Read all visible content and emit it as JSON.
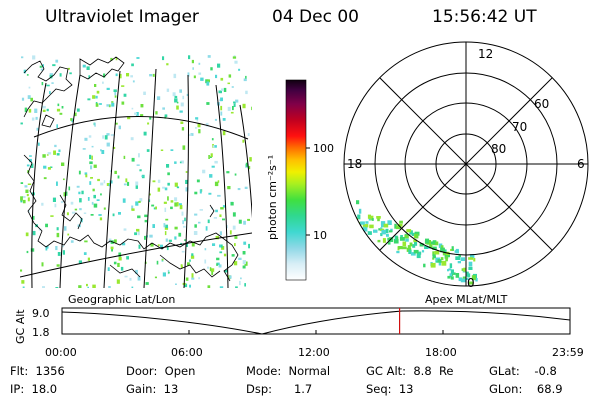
{
  "header": {
    "instrument": "Ultraviolet Imager",
    "date": "04 Dec 00",
    "time": "15:56:42 UT"
  },
  "colorbar": {
    "unit_label": "photon cm⁻²s⁻¹",
    "ticks": [
      "100",
      "10"
    ]
  },
  "polar_plot": {
    "mlt_labels": [
      "12",
      "18",
      "6",
      "0"
    ],
    "lat_labels": [
      "60",
      "70",
      "80"
    ]
  },
  "map_labels": {
    "geographic": "Geographic Lat/Lon",
    "apex": "Apex MLat/MLT"
  },
  "altitude_plot": {
    "ylabel": "GC Alt",
    "yticks": [
      "9.0",
      "1.8"
    ],
    "xticks": [
      "00:00",
      "06:00",
      "12:00",
      "18:00",
      "23:59"
    ],
    "current_time_hours": 15.95
  },
  "status": {
    "flt": "Flt:  1356",
    "ip": "IP:  18.0",
    "door": "Door:  Open",
    "gain": "Gain:  13",
    "mode": "Mode:  Normal",
    "dsp": "Dsp:      1.7",
    "gc_alt": "GC Alt:  8.8  Re",
    "seq": "Seq:  13",
    "glat": "GLat:    -0.8",
    "glon": "GLon:    68.9"
  }
}
